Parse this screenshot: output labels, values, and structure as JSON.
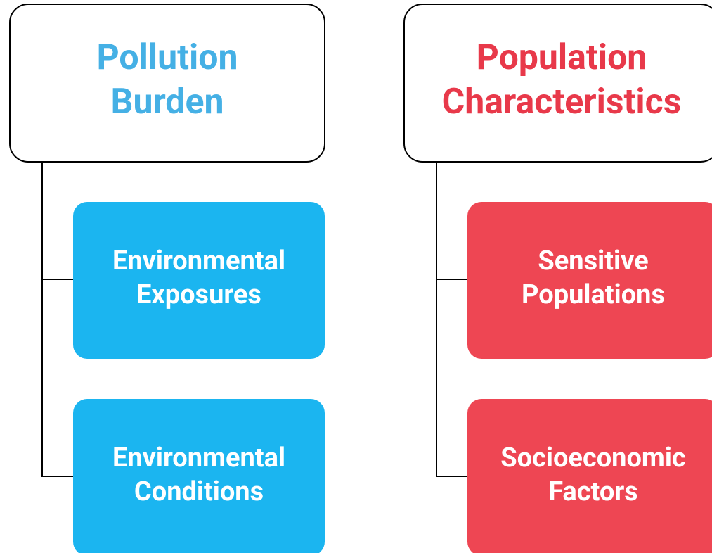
{
  "groups": [
    {
      "title": [
        "Pollution",
        "Burden"
      ],
      "items": [
        {
          "label": [
            "Environmental",
            "Exposures"
          ]
        },
        {
          "label": [
            "Environmental",
            "Conditions"
          ]
        }
      ]
    },
    {
      "title": [
        "Population",
        "Characteristics"
      ],
      "items": [
        {
          "label": [
            "Sensitive",
            "Populations"
          ]
        },
        {
          "label": [
            "Socioeconomic",
            "Factors"
          ]
        }
      ]
    }
  ]
}
